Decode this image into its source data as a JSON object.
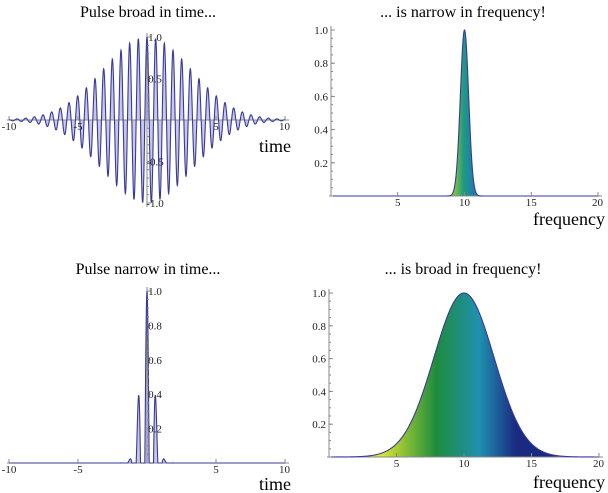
{
  "chart_data": [
    {
      "type": "line",
      "title": "Pulse broad in time...",
      "xlabel": "time",
      "ylabel": "",
      "function": "cos(10 t) * exp(-t^2 / (2 * 3.2^2))",
      "carrier": 10,
      "sigma": 3.2,
      "center": 0,
      "xlim": [
        -10,
        10
      ],
      "ylim": [
        -1,
        1
      ],
      "xticks": [
        -10,
        -5,
        5,
        10
      ],
      "xtick_labels": [
        "-10",
        "-5",
        "5",
        "10"
      ],
      "yticks": [
        -1,
        -0.5,
        0.5,
        1
      ],
      "ytick_labels": [
        "-1.0",
        "-0.5",
        "0.5",
        "1.0"
      ],
      "line_color": "#3a3a9a",
      "fill_color": "#b4b4e0"
    },
    {
      "type": "area",
      "title": "... is narrow in frequency!",
      "xlabel": "frequency",
      "ylabel": "",
      "function": "exp(-(f-10)^2 / (2 * 0.31^2))",
      "carrier": 0,
      "sigma": 0.31,
      "center": 10,
      "xlim": [
        0,
        20
      ],
      "ylim": [
        0,
        1
      ],
      "xticks": [
        5,
        10,
        15,
        20
      ],
      "xtick_labels": [
        "5",
        "10",
        "15",
        "20"
      ],
      "yticks": [
        0.2,
        0.4,
        0.6,
        0.8,
        1.0
      ],
      "ytick_labels": [
        "0.2",
        "0.4",
        "0.6",
        "0.8",
        "1.0"
      ],
      "line_color": "#3a3a9a",
      "fill_color": "#1f9a80"
    },
    {
      "type": "line",
      "title": "Pulse narrow in time...",
      "xlabel": "time",
      "ylabel": "",
      "function": "cos(10 t) * exp(-t^2 / (2 * 0.45^2))",
      "carrier": 10,
      "sigma": 0.45,
      "center": 0,
      "xlim": [
        -10,
        10
      ],
      "ylim": [
        0,
        1
      ],
      "xticks": [
        -10,
        -5,
        5,
        10
      ],
      "xtick_labels": [
        "-10",
        "-5",
        "5",
        "10"
      ],
      "yticks": [
        0.2,
        0.4,
        0.6,
        0.8,
        1.0
      ],
      "ytick_labels": [
        "0.2",
        "0.4",
        "0.6",
        "0.8",
        "1.0"
      ],
      "line_color": "#3a3a9a",
      "fill_color": "#b4b4e0"
    },
    {
      "type": "area",
      "title": "... is broad in frequency!",
      "xlabel": "frequency",
      "ylabel": "",
      "function": "exp(-(f-10)^2 / (2 * 2.23^2))",
      "carrier": 0,
      "sigma": 2.23,
      "center": 10,
      "xlim": [
        0,
        20
      ],
      "ylim": [
        0,
        1
      ],
      "xticks": [
        5,
        10,
        15,
        20
      ],
      "xtick_labels": [
        "5",
        "10",
        "15",
        "20"
      ],
      "yticks": [
        0.2,
        0.4,
        0.6,
        0.8,
        1.0
      ],
      "ytick_labels": [
        "0.2",
        "0.4",
        "0.6",
        "0.8",
        "1.0"
      ],
      "line_color": "#3a3a9a",
      "fill_gradient": [
        "#d8e020",
        "#1e8c3c",
        "#2090b0",
        "#1a2a80"
      ]
    }
  ]
}
